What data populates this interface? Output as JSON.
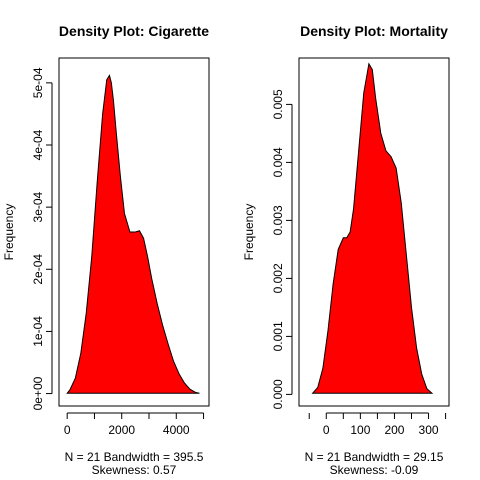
{
  "chart_data": [
    {
      "type": "area",
      "title": "Density Plot: Cigarette",
      "xlabel_line1": "N = 21   Bandwidth = 395.5",
      "xlabel_line2": "Skewness: 0.57",
      "ylabel": "Frequency",
      "xlim": [
        -300,
        5200
      ],
      "ylim": [
        -2e-05,
        0.00054
      ],
      "x_ticks": [
        0,
        1000,
        2000,
        3000,
        4000,
        5000
      ],
      "x_tick_labels": [
        "0",
        "",
        "2000",
        "",
        "4000",
        ""
      ],
      "y_ticks": [
        0,
        0.0001,
        0.0002,
        0.0003,
        0.0004,
        0.0005
      ],
      "y_tick_labels": [
        "0e+00",
        "1e-04",
        "2e-04",
        "3e-04",
        "4e-04",
        "5e-04"
      ],
      "fill": "#ff0000",
      "x": [
        -1e-06,
        100,
        300,
        500,
        700,
        900,
        1100,
        1300,
        1450,
        1550,
        1620,
        1700,
        1800,
        1950,
        2100,
        2300,
        2500,
        2650,
        2800,
        2950,
        3100,
        3300,
        3500,
        3700,
        3900,
        4100,
        4300,
        4500,
        4700,
        4850
      ],
      "y": [
        5e-07,
        6e-06,
        2.5e-05,
        6.5e-05,
        0.00013,
        0.00022,
        0.00034,
        0.00045,
        0.000505,
        0.000512,
        0.0005,
        0.00047,
        0.00042,
        0.00035,
        0.00029,
        0.00026,
        0.00026,
        0.000262,
        0.00025,
        0.00022,
        0.000185,
        0.000145,
        0.00011,
        8e-05,
        5.2e-05,
        3.2e-05,
        1.7e-05,
        7e-06,
        2e-06,
        5e-07
      ]
    },
    {
      "type": "area",
      "title": "Density Plot: Mortality",
      "xlabel_line1": "N = 21   Bandwidth = 29.15",
      "xlabel_line2": "Skewness: -0.09",
      "ylabel": "Frequency",
      "xlim": [
        -80,
        360
      ],
      "ylim": [
        -0.0002,
        0.0058
      ],
      "x_ticks": [
        0,
        100,
        200,
        300
      ],
      "x_tick_labels": [
        "0",
        "100",
        "200",
        "300"
      ],
      "extra_x_tick_marks": [
        -50,
        50,
        150,
        250,
        350
      ],
      "y_ticks": [
        0,
        0.001,
        0.002,
        0.003,
        0.004,
        0.005
      ],
      "y_tick_labels": [
        "0.000",
        "0.001",
        "0.002",
        "0.003",
        "0.004",
        "0.005"
      ],
      "fill": "#ff0000",
      "x": [
        -40,
        -25,
        -10,
        5,
        20,
        35,
        50,
        60,
        70,
        80,
        95,
        110,
        125,
        135,
        145,
        160,
        175,
        190,
        205,
        220,
        235,
        250,
        265,
        280,
        295,
        310
      ],
      "y": [
        2e-05,
        0.00012,
        0.00045,
        0.0011,
        0.0019,
        0.0025,
        0.0027,
        0.0027,
        0.0028,
        0.0032,
        0.0042,
        0.0052,
        0.0057,
        0.0056,
        0.0051,
        0.0045,
        0.0042,
        0.0041,
        0.0039,
        0.0033,
        0.0024,
        0.0015,
        0.0008,
        0.00035,
        0.0001,
        2e-05
      ]
    }
  ]
}
